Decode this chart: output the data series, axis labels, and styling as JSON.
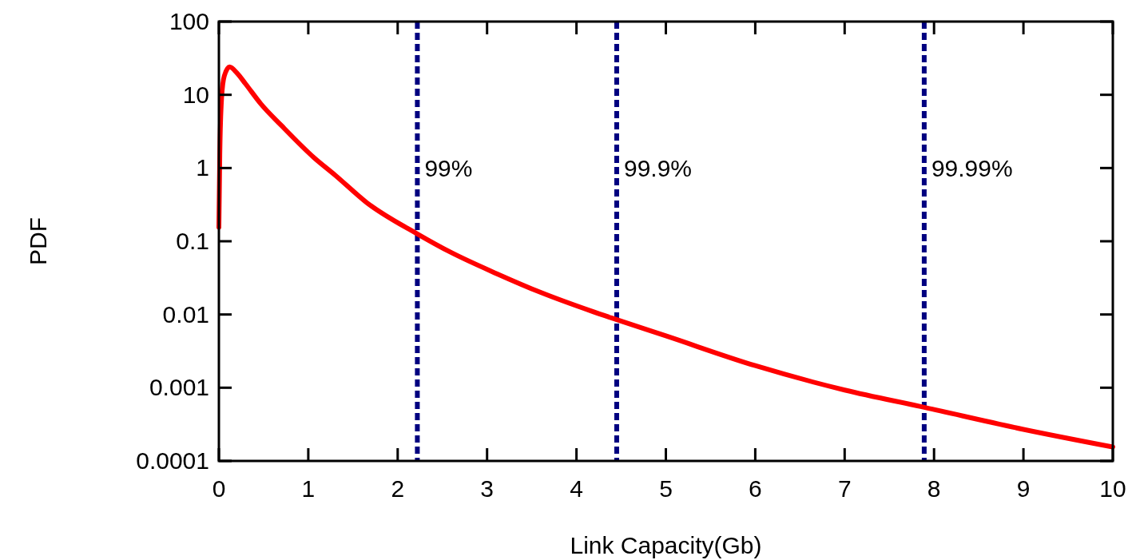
{
  "chart_data": {
    "type": "line",
    "xlabel": "Link Capacity(Gb)",
    "ylabel": "PDF",
    "log": "y",
    "xlim": [
      0,
      10
    ],
    "xticks": [
      0,
      1,
      2,
      3,
      4,
      5,
      6,
      7,
      8,
      9,
      10
    ],
    "ylim": [
      0.0001,
      100
    ],
    "yticks": [
      0.0001,
      0.001,
      0.01,
      0.1,
      1,
      10,
      100
    ],
    "grid": false,
    "marker": "none",
    "line_style": "solid",
    "series": [
      {
        "color": "#ff0000",
        "x": [
          0,
          0.01,
          0.03,
          0.06,
          0.12,
          0.2,
          0.3,
          0.47,
          0.7,
          1.06,
          1.3,
          1.65,
          2.22,
          2.6,
          3.11,
          3.6,
          4.16,
          4.45,
          5,
          6,
          7,
          7.89,
          9,
          10
        ],
        "values": [
          0.155,
          1.5,
          9,
          18,
          24,
          20,
          14,
          7.5,
          3.8,
          1.4,
          0.8,
          0.34,
          0.126,
          0.07,
          0.036,
          0.02,
          0.0112,
          0.0085,
          0.0051,
          0.002,
          0.00093,
          0.00054,
          0.00027,
          0.000155
        ]
      }
    ],
    "ref_lines": [
      {
        "axis": "x",
        "value": 2.22,
        "color": "#000080",
        "line_style": "dashed"
      },
      {
        "axis": "x",
        "value": 4.45,
        "color": "#000080",
        "line_style": "dashed"
      },
      {
        "axis": "x",
        "value": 7.89,
        "color": "#000080",
        "line_style": "dashed"
      }
    ],
    "annotations": [
      {
        "text": "99%",
        "x": 2.22,
        "y": 1
      },
      {
        "text": "99.9%",
        "x": 4.45,
        "y": 1
      },
      {
        "text": "99.99%",
        "x": 7.89,
        "y": 1
      }
    ]
  }
}
